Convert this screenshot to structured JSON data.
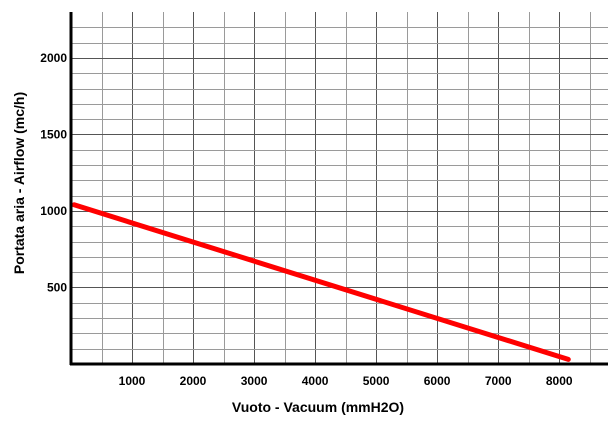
{
  "chart_data": {
    "type": "line",
    "title": "",
    "xlabel": "Vuoto - Vacuum (mmH2O)",
    "ylabel": "Portata aria - Airflow (mc/h)",
    "xlim": [
      0,
      8800
    ],
    "ylim": [
      0,
      2300
    ],
    "x_ticks": [
      1000,
      2000,
      3000,
      4000,
      5000,
      6000,
      7000,
      8000
    ],
    "x_tick_labels": [
      "1000",
      "2000",
      "3000",
      "4000",
      "5000",
      "6000",
      "7000",
      "8000"
    ],
    "y_ticks": [
      500,
      1000,
      1500,
      2000
    ],
    "y_tick_labels": [
      "500",
      "1000",
      "1500",
      "2000"
    ],
    "x_minor_step": 500,
    "y_minor_step": 100,
    "grid": true,
    "legend": "none",
    "series": [
      {
        "x": [
          50,
          8150
        ],
        "y": [
          1040,
          30
        ],
        "color": "#ff0000"
      }
    ],
    "colors": {
      "grid": "#9a9a9a",
      "axis": "#000000",
      "text": "#000000",
      "background": "#ffffff"
    }
  }
}
